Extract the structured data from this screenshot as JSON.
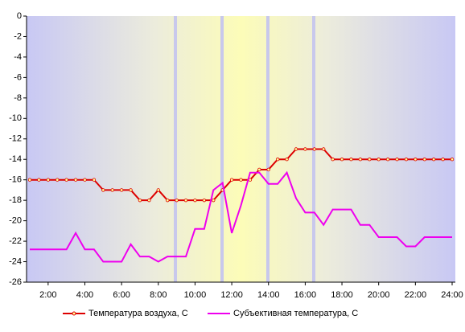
{
  "chart_data": {
    "type": "line",
    "categories": [
      null,
      null,
      "2:00",
      null,
      null,
      null,
      "4:00",
      null,
      null,
      null,
      "6:00",
      null,
      null,
      null,
      "8:00",
      null,
      null,
      null,
      "10:00",
      null,
      null,
      null,
      "12:00",
      null,
      null,
      null,
      "14:00",
      null,
      null,
      null,
      "16:00",
      null,
      null,
      null,
      "18:00",
      null,
      null,
      null,
      "20:00",
      null,
      null,
      null,
      "22:00",
      null,
      null,
      null,
      "24:00"
    ],
    "series": [
      {
        "name": "Температура воздуха, С",
        "color": "#dd0000",
        "marker": true,
        "values": [
          -16,
          -16,
          -16,
          -16,
          -16,
          -16,
          -16,
          -16,
          -17,
          -17,
          -17,
          -17,
          -18,
          -18,
          -17,
          -18,
          -18,
          -18,
          -18,
          -18,
          -18,
          -17,
          -16,
          -16,
          -16,
          -15,
          -15,
          -14,
          -14,
          -13,
          -13,
          -13,
          -13,
          -14,
          -14,
          -14,
          -14,
          -14,
          -14,
          -14,
          -14,
          -14,
          -14,
          -14,
          -14,
          -14,
          -14
        ]
      },
      {
        "name": "Субъективная температура, С",
        "color": "#ee00ee",
        "marker": false,
        "values": [
          -22.8,
          -22.8,
          -22.8,
          -22.8,
          -22.8,
          -21.2,
          -22.8,
          -22.8,
          -24,
          -24,
          -24,
          -22.3,
          -23.5,
          -23.5,
          -24,
          -23.5,
          -23.5,
          -23.5,
          -20.8,
          -20.8,
          -17,
          -16.3,
          -21.2,
          -18.5,
          -15.3,
          -15.3,
          -16.4,
          -16.4,
          -15.3,
          -17.8,
          -19.2,
          -19.2,
          -20.4,
          -18.9,
          -18.9,
          -18.9,
          -20.4,
          -20.4,
          -21.6,
          -21.6,
          -21.6,
          -22.5,
          -22.5,
          -21.6,
          -21.6,
          -21.6,
          -21.6
        ]
      }
    ],
    "ylim": [
      -26,
      0
    ],
    "yticks": [
      0,
      -2,
      -4,
      -6,
      -8,
      -10,
      -12,
      -14,
      -16,
      -18,
      -20,
      -22,
      -24,
      -26
    ],
    "grid": false
  }
}
